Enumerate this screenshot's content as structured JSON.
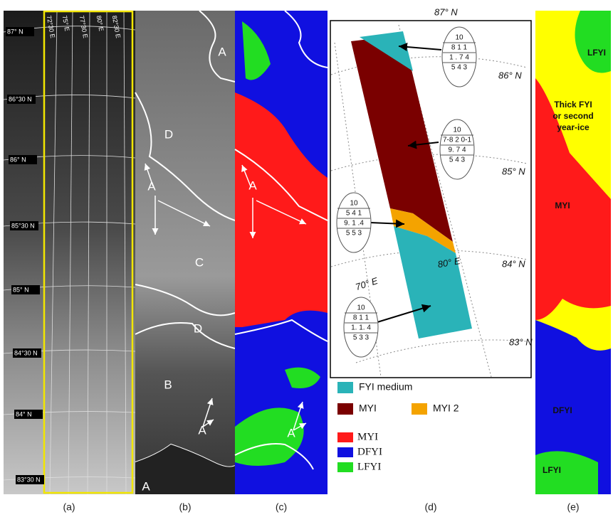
{
  "panel_a": {
    "caption": "(a)",
    "latitudes": [
      "87° N",
      "86°30 N",
      "86° N",
      "85°30 N",
      "85° N",
      "84°30 N",
      "84° N",
      "83°30 N"
    ],
    "longitudes": [
      "72°30 E",
      "75° E",
      "77°30 E",
      "80° E",
      "82°30 E"
    ]
  },
  "panel_b": {
    "caption": "(b)",
    "regions": [
      "A",
      "D",
      "A",
      "C",
      "D",
      "B",
      "A",
      "A"
    ]
  },
  "panel_c": {
    "caption": "(c)",
    "regions": [
      "A",
      "A"
    ],
    "legend": [
      {
        "label": "MYI",
        "color": "#ff1a1a"
      },
      {
        "label": "DFYI",
        "color": "#1010e0"
      },
      {
        "label": "LFYI",
        "color": "#22dd22"
      }
    ]
  },
  "panel_d": {
    "caption": "(d)",
    "latitudes": [
      "87° N",
      "86° N",
      "85° N",
      "84° N",
      "83° N"
    ],
    "longitudes": [
      "70° E",
      "80° E"
    ],
    "egg_codes": [
      [
        "10",
        "8 1 1",
        "1 . 7 4",
        "5 4 3"
      ],
      [
        "10",
        "7-8 2 0-1",
        "9. 7 4",
        "5 4 3"
      ],
      [
        "10",
        "5 4 1",
        "9. 1 .4",
        "5 5 3"
      ],
      [
        "10",
        "8 1 1",
        "1. 1. 4",
        "5 3 3"
      ]
    ],
    "legend": [
      {
        "label": "FYI medium",
        "color": "#2ab3b8"
      },
      {
        "label": "MYI",
        "color": "#7a0000"
      },
      {
        "label": "MYI 2",
        "color": "#f4a300"
      }
    ]
  },
  "panel_e": {
    "caption": "(e)",
    "labels": [
      [
        "LFYI"
      ],
      [
        "Thick FYI",
        "or second",
        "year-ice"
      ],
      [
        "MYI"
      ],
      [
        "DFYI"
      ],
      [
        "LFYI"
      ]
    ]
  }
}
